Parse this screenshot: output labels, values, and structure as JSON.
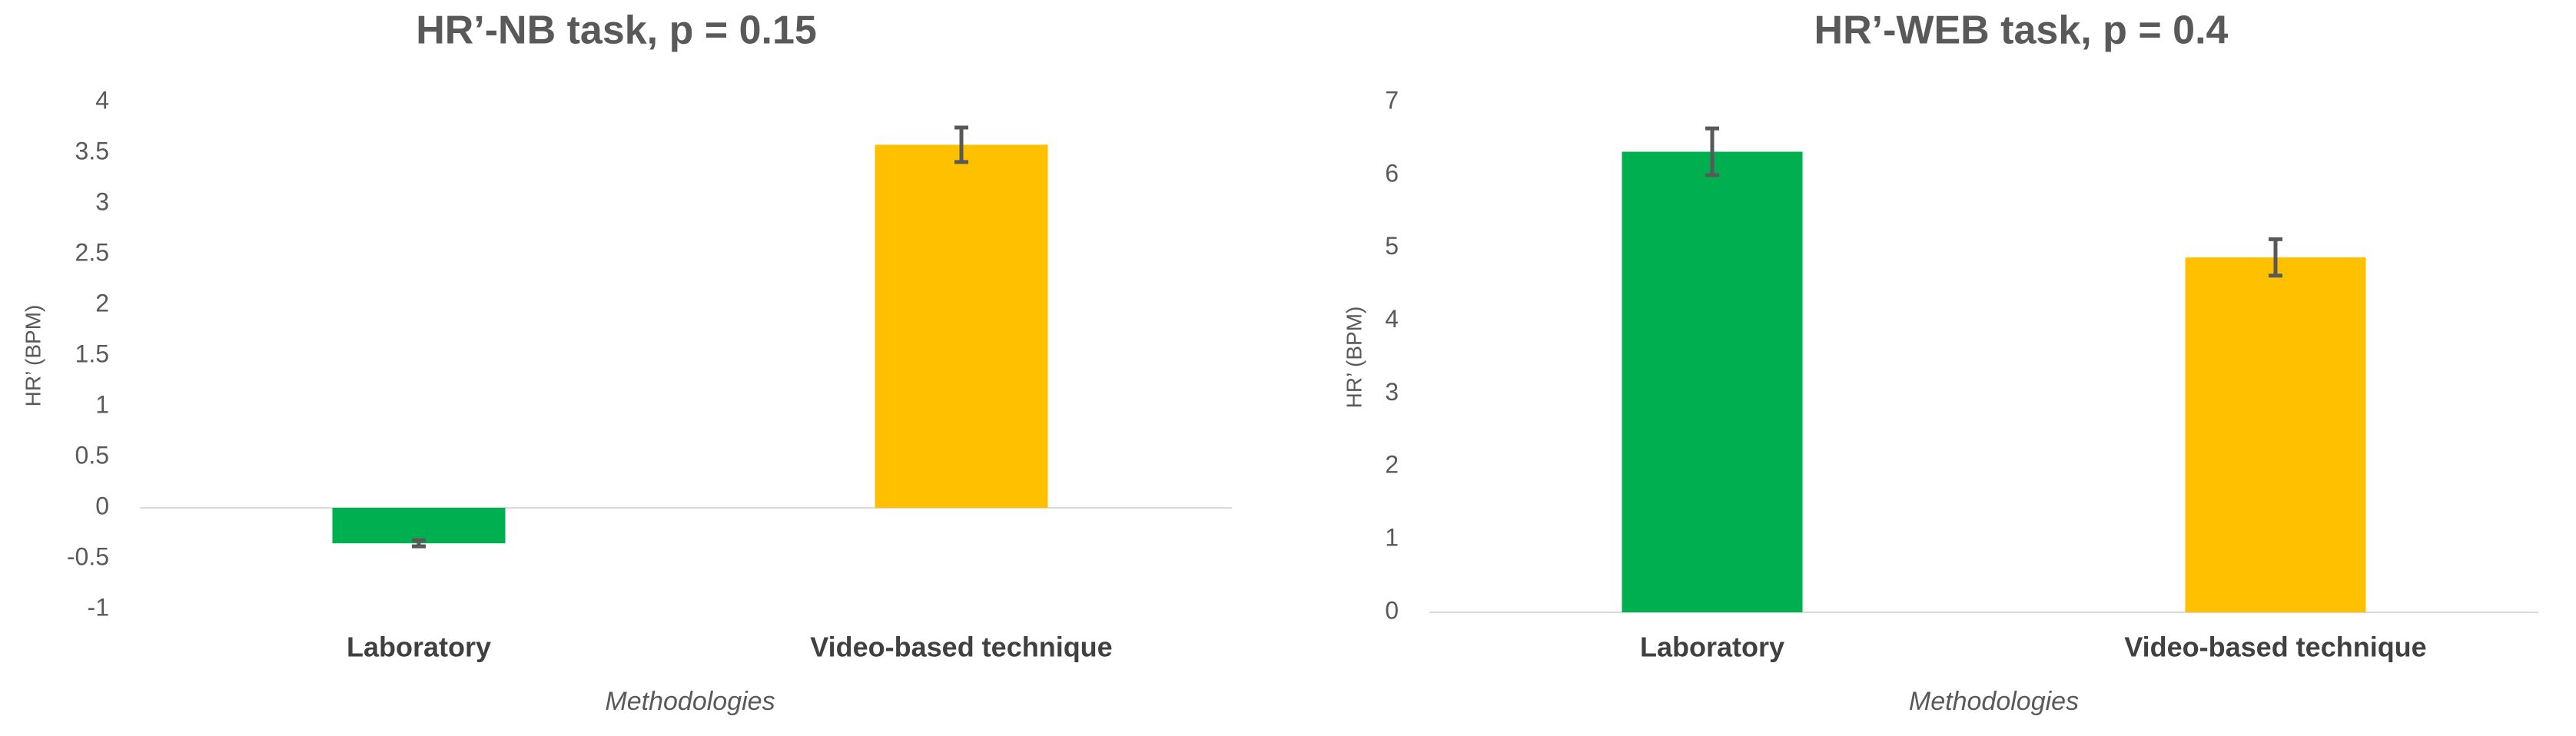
{
  "chart_data": [
    {
      "type": "bar",
      "title": "HR’-NB task, p = 0.15",
      "y_label": "HR’ (BPM)",
      "x_label": "Methodologies",
      "categories": [
        "Laboratory",
        "Video-based technique"
      ],
      "values": [
        -0.35,
        3.58
      ],
      "errors": [
        0.03,
        0.17
      ],
      "colors": [
        "#00b050",
        "#ffc000"
      ],
      "error_color": "#595959",
      "ylim": [
        -1,
        4
      ],
      "yticks": [
        -1,
        -0.5,
        0,
        0.5,
        1,
        1.5,
        2,
        2.5,
        3,
        3.5,
        4
      ],
      "grid": false
    },
    {
      "type": "bar",
      "title": "HR’-WEB task, p = 0.4",
      "y_label": "HR’ (BPM)",
      "x_label": "Methodologies",
      "categories": [
        "Laboratory",
        "Video-based technique"
      ],
      "values": [
        6.32,
        4.87
      ],
      "errors": [
        0.32,
        0.25
      ],
      "colors": [
        "#00b050",
        "#ffc000"
      ],
      "error_color": "#595959",
      "ylim": [
        0,
        7
      ],
      "yticks": [
        0,
        1,
        2,
        3,
        4,
        5,
        6,
        7
      ],
      "grid": false
    }
  ]
}
